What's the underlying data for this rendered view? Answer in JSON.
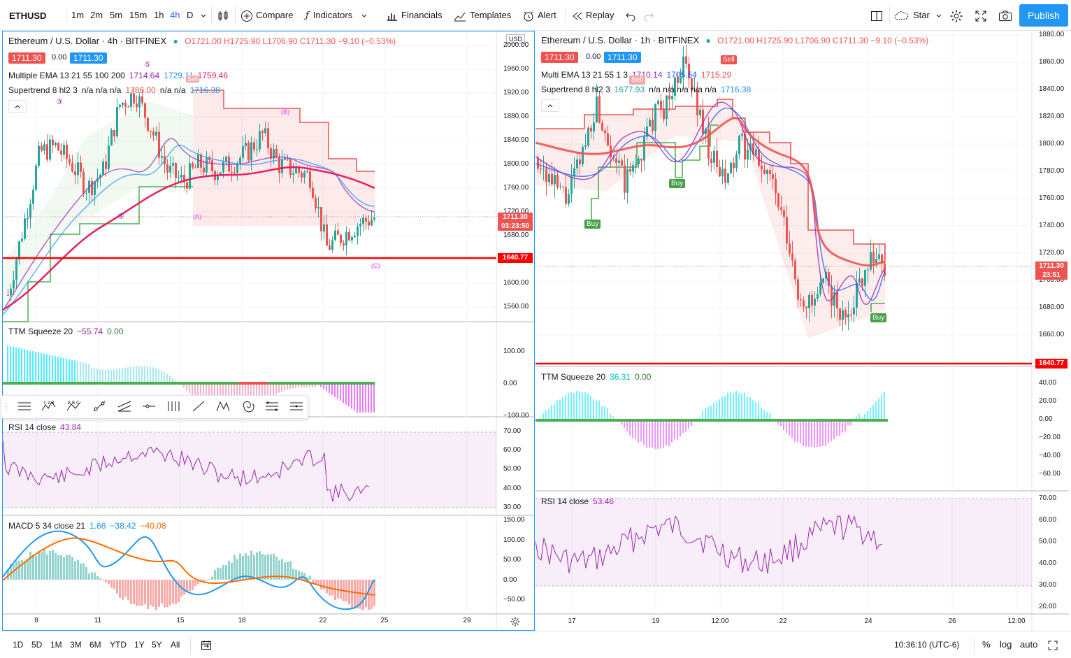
{
  "toolbar": {
    "symbol": "ETHUSD",
    "intervals": [
      "1m",
      "2m",
      "5m",
      "15m",
      "1h",
      "4h",
      "D"
    ],
    "active_interval": "4h",
    "compare": "Compare",
    "indicators": "Indicators",
    "financials": "Financials",
    "templates": "Templates",
    "alert": "Alert",
    "replay": "Replay",
    "star": "Star",
    "publish": "Publish"
  },
  "left": {
    "title": "Ethereum / U.S. Dollar · 4h · BITFINEX",
    "ohlc": {
      "o": "O1721.00",
      "h": "H1725.90",
      "l": "L1706.90",
      "c": "C1711.30",
      "chg": "−9.10 (−0.53%)"
    },
    "bid": "1711.30",
    "spread": "0.00",
    "ask": "1711.30",
    "ema_label": "Multiple EMA 13 21 55 100 200",
    "ema_vals": [
      "1714.64",
      "1729.11",
      "1759.46"
    ],
    "st_label": "Supertrend 8 hl2 3",
    "st_vals": [
      "n/a n/a n/a",
      "1786.00",
      "n/a n/a",
      "1716.38"
    ],
    "currency": "USD",
    "price_ticks": [
      "2000.00",
      "1960.00",
      "1920.00",
      "1880.00",
      "1840.00",
      "1800.00",
      "1760.00",
      "1720.00",
      "1680.00",
      "1640.00",
      "1600.00",
      "1560.00"
    ],
    "last_price": "1711.30",
    "countdown": "03:23:50",
    "hline": "1640.77",
    "ttm_label": "TTM Squeeze 20",
    "ttm_vals": [
      "−55.74",
      "0.00"
    ],
    "ttm_ticks": [
      "100.00",
      "0.00",
      "−100.00"
    ],
    "rsi_label": "RSI 14 close",
    "rsi_val": "43.84",
    "rsi_ticks": [
      "70.00",
      "60.00",
      "50.00",
      "40.00",
      "30.00"
    ],
    "macd_label": "MACD 5 34 close 21",
    "macd_vals": [
      "1.66",
      "−38.42",
      "−40.08"
    ],
    "macd_ticks": [
      "150.00",
      "100.00",
      "50.00",
      "0.00",
      "−50.00"
    ],
    "time_ticks": [
      "8",
      "11",
      "15",
      "18",
      "22",
      "25",
      "29"
    ],
    "waves": [
      "⑤",
      "③",
      "④",
      "(A)",
      "(B)",
      "(C)"
    ],
    "sell": "Sell"
  },
  "right": {
    "title": "Ethereum / U.S. Dollar · 1h · BITFINEX",
    "ohlc": {
      "o": "O1721.00",
      "h": "H1725.90",
      "l": "L1706.90",
      "c": "C1711.30",
      "chg": "−9.10 (−0.53%)"
    },
    "bid": "1711.30",
    "spread": "0.00",
    "ask": "1711.30",
    "ema_label": "Multi EMA 13 21 55 1 3",
    "ema_vals": [
      "1710.14",
      "1705.54",
      "1715.29"
    ],
    "st_label": "Supertrend 8 hl2 3",
    "st_vals": [
      "1677.93",
      "n/a n/a n/a n/a n/a",
      "1716.38"
    ],
    "price_ticks": [
      "1880.00",
      "1860.00",
      "1840.00",
      "1820.00",
      "1800.00",
      "1780.00",
      "1760.00",
      "1740.00",
      "1720.00",
      "1700.00",
      "1680.00",
      "1660.00"
    ],
    "last_price": "1711.30",
    "countdown": "23:51",
    "hline": "1640.77",
    "ttm_label": "TTM Squeeze 20",
    "ttm_vals": [
      "36.31",
      "0.00"
    ],
    "ttm_ticks": [
      "40.00",
      "20.00",
      "0.00",
      "−20.00",
      "−40.00",
      "−60.00"
    ],
    "rsi_label": "RSI 14 close",
    "rsi_val": "53.46",
    "rsi_ticks": [
      "70.00",
      "60.00",
      "50.00",
      "40.00",
      "30.00",
      "20.00"
    ],
    "time_ticks": [
      "17",
      "19",
      "12:00",
      "22",
      "24",
      "26",
      "12:00"
    ],
    "buy": "Buy",
    "sell": "Sell"
  },
  "bottom": {
    "ranges": [
      "1D",
      "5D",
      "1M",
      "3M",
      "6M",
      "YTD",
      "1Y",
      "5Y",
      "All"
    ],
    "time": "10:36:10 (UTC-6)",
    "pct": "%",
    "log": "log",
    "auto": "auto"
  },
  "colors": {
    "up": "#26a69a",
    "down": "#ef5350",
    "accent": "#2962ff",
    "publish": "#2196f3",
    "hline": "#ff0000"
  }
}
